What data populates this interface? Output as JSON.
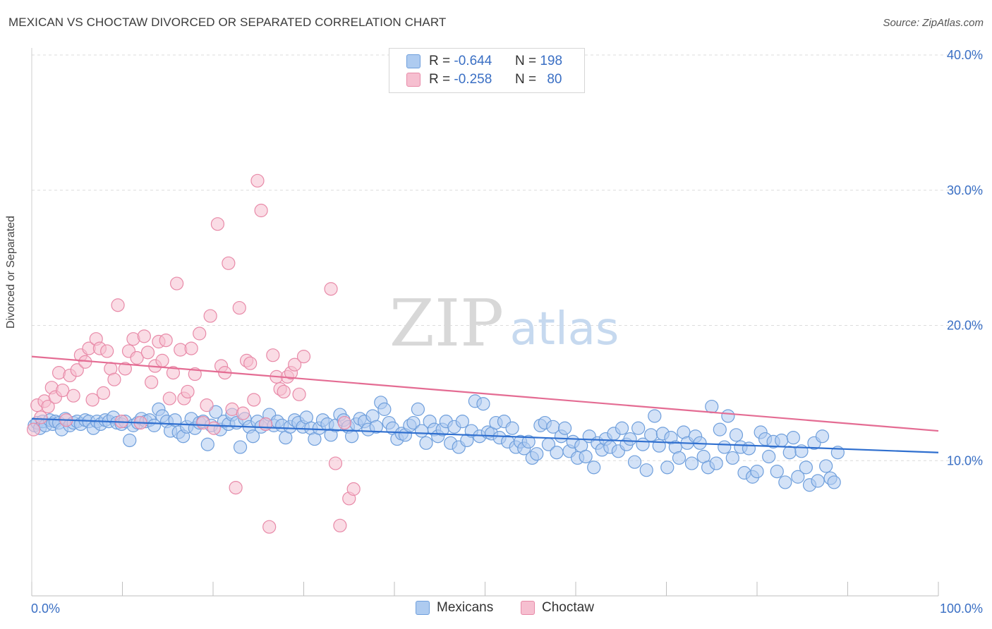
{
  "title": "MEXICAN VS CHOCTAW DIVORCED OR SEPARATED CORRELATION CHART",
  "source": "Source: ZipAtlas.com",
  "watermark": {
    "zip": "ZIP",
    "atlas": "atlas"
  },
  "legend_top": [
    {
      "r_label": "R =",
      "r_value": "-0.644",
      "n_label": "N =",
      "n_value": "198"
    },
    {
      "r_label": "R =",
      "r_value": "-0.258",
      "n_label": "N =",
      "n_value": "80"
    }
  ],
  "bottom_legend": [
    {
      "label": "Mexicans"
    },
    {
      "label": "Choctaw"
    }
  ],
  "colors": {
    "blue_fill": "#aecbf0",
    "blue_stroke": "#6f9fdc",
    "blue_line": "#2f6fcf",
    "pink_fill": "#f6bfd0",
    "pink_stroke": "#e88aa8",
    "pink_line": "#e46c93",
    "axis_label": "#3a6fc4",
    "grid": "#dcdcdc"
  },
  "chart_data": {
    "type": "scatter",
    "title": "MEXICAN VS CHOCTAW DIVORCED OR SEPARATED CORRELATION CHART",
    "xlabel": "",
    "ylabel": "Divorced or Separated",
    "xlim": [
      0,
      100
    ],
    "ylim": [
      0,
      40
    ],
    "x_tick_labels": [
      "0.0%",
      "100.0%"
    ],
    "y_ticks": [
      10,
      20,
      30,
      40
    ],
    "y_tick_labels": [
      "10.0%",
      "20.0%",
      "30.0%",
      "40.0%"
    ],
    "grid": true,
    "legend_position": "top-center",
    "series": [
      {
        "name": "Mexicans",
        "trend": {
          "x": [
            0,
            100
          ],
          "y": [
            13.1,
            10.6
          ]
        },
        "points": [
          [
            0.3,
            12.6
          ],
          [
            0.6,
            12.8
          ],
          [
            0.9,
            12.4
          ],
          [
            1.2,
            12.9
          ],
          [
            1.5,
            12.6
          ],
          [
            2.0,
            13.0
          ],
          [
            2.3,
            12.7
          ],
          [
            2.6,
            12.9
          ],
          [
            3.0,
            12.8
          ],
          [
            3.3,
            12.3
          ],
          [
            3.7,
            13.1
          ],
          [
            4.2,
            12.6
          ],
          [
            4.6,
            12.8
          ],
          [
            5.0,
            12.9
          ],
          [
            5.4,
            12.7
          ],
          [
            5.9,
            13.0
          ],
          [
            6.3,
            12.9
          ],
          [
            6.8,
            12.4
          ],
          [
            7.2,
            12.9
          ],
          [
            7.6,
            12.7
          ],
          [
            8.1,
            13.0
          ],
          [
            8.5,
            12.9
          ],
          [
            9.0,
            13.2
          ],
          [
            9.4,
            12.8
          ],
          [
            9.9,
            12.7
          ],
          [
            10.3,
            12.9
          ],
          [
            10.8,
            11.5
          ],
          [
            11.2,
            12.6
          ],
          [
            11.7,
            12.8
          ],
          [
            12.1,
            13.1
          ],
          [
            12.6,
            12.9
          ],
          [
            13.0,
            13.0
          ],
          [
            13.5,
            12.6
          ],
          [
            14.0,
            13.8
          ],
          [
            14.4,
            13.3
          ],
          [
            14.9,
            12.9
          ],
          [
            15.3,
            12.2
          ],
          [
            15.8,
            13.0
          ],
          [
            16.2,
            12.1
          ],
          [
            16.7,
            11.8
          ],
          [
            17.1,
            12.5
          ],
          [
            17.6,
            13.1
          ],
          [
            18.0,
            12.4
          ],
          [
            18.5,
            12.8
          ],
          [
            18.9,
            12.9
          ],
          [
            19.4,
            11.2
          ],
          [
            19.8,
            12.6
          ],
          [
            20.3,
            13.6
          ],
          [
            20.8,
            12.3
          ],
          [
            21.2,
            12.9
          ],
          [
            21.7,
            12.7
          ],
          [
            22.1,
            13.4
          ],
          [
            22.6,
            12.8
          ],
          [
            23.0,
            11.0
          ],
          [
            23.5,
            13.1
          ],
          [
            24.0,
            12.5
          ],
          [
            24.4,
            11.8
          ],
          [
            24.9,
            12.9
          ],
          [
            25.3,
            12.5
          ],
          [
            25.8,
            12.7
          ],
          [
            26.2,
            13.4
          ],
          [
            26.7,
            12.6
          ],
          [
            27.1,
            12.9
          ],
          [
            27.6,
            12.6
          ],
          [
            28.0,
            11.7
          ],
          [
            28.5,
            12.5
          ],
          [
            29.0,
            13.0
          ],
          [
            29.4,
            12.8
          ],
          [
            29.9,
            12.5
          ],
          [
            30.3,
            13.2
          ],
          [
            30.8,
            12.4
          ],
          [
            31.2,
            11.6
          ],
          [
            31.7,
            12.4
          ],
          [
            32.1,
            13.0
          ],
          [
            32.6,
            12.7
          ],
          [
            33.0,
            11.9
          ],
          [
            33.5,
            12.6
          ],
          [
            34.0,
            13.4
          ],
          [
            34.4,
            13.0
          ],
          [
            34.9,
            12.5
          ],
          [
            35.3,
            11.8
          ],
          [
            35.8,
            12.7
          ],
          [
            36.2,
            13.1
          ],
          [
            36.7,
            12.9
          ],
          [
            37.1,
            12.3
          ],
          [
            37.6,
            13.3
          ],
          [
            38.0,
            12.5
          ],
          [
            38.5,
            14.3
          ],
          [
            38.9,
            13.8
          ],
          [
            39.4,
            12.8
          ],
          [
            39.8,
            12.4
          ],
          [
            40.3,
            11.6
          ],
          [
            40.8,
            12.0
          ],
          [
            41.2,
            11.9
          ],
          [
            41.7,
            12.6
          ],
          [
            42.1,
            12.8
          ],
          [
            42.6,
            13.8
          ],
          [
            43.0,
            12.2
          ],
          [
            43.5,
            11.3
          ],
          [
            43.9,
            12.9
          ],
          [
            44.4,
            12.3
          ],
          [
            44.8,
            11.8
          ],
          [
            45.3,
            12.3
          ],
          [
            45.7,
            12.9
          ],
          [
            46.2,
            11.3
          ],
          [
            46.6,
            12.5
          ],
          [
            47.1,
            11.0
          ],
          [
            47.5,
            12.9
          ],
          [
            48.0,
            11.5
          ],
          [
            48.5,
            12.2
          ],
          [
            48.9,
            14.4
          ],
          [
            49.4,
            11.8
          ],
          [
            49.8,
            14.2
          ],
          [
            50.3,
            12.1
          ],
          [
            50.7,
            12.0
          ],
          [
            51.2,
            12.8
          ],
          [
            51.6,
            11.7
          ],
          [
            52.1,
            12.9
          ],
          [
            52.5,
            11.4
          ],
          [
            53.0,
            12.4
          ],
          [
            53.4,
            11.0
          ],
          [
            53.9,
            11.4
          ],
          [
            54.3,
            10.9
          ],
          [
            54.8,
            11.4
          ],
          [
            55.2,
            10.2
          ],
          [
            55.7,
            10.5
          ],
          [
            56.1,
            12.6
          ],
          [
            56.6,
            12.8
          ],
          [
            57.0,
            11.2
          ],
          [
            57.5,
            12.5
          ],
          [
            57.9,
            10.6
          ],
          [
            58.4,
            11.8
          ],
          [
            58.8,
            12.4
          ],
          [
            59.3,
            10.7
          ],
          [
            59.7,
            11.4
          ],
          [
            60.2,
            10.2
          ],
          [
            60.6,
            11.1
          ],
          [
            61.1,
            10.3
          ],
          [
            61.5,
            11.8
          ],
          [
            62.0,
            9.5
          ],
          [
            62.4,
            11.3
          ],
          [
            62.9,
            10.8
          ],
          [
            63.3,
            11.6
          ],
          [
            63.8,
            11.0
          ],
          [
            64.2,
            12.0
          ],
          [
            64.7,
            10.7
          ],
          [
            65.1,
            12.4
          ],
          [
            65.6,
            11.2
          ],
          [
            66.0,
            11.6
          ],
          [
            66.5,
            9.9
          ],
          [
            66.9,
            12.4
          ],
          [
            67.4,
            11.2
          ],
          [
            67.8,
            9.3
          ],
          [
            68.3,
            11.9
          ],
          [
            68.7,
            13.3
          ],
          [
            69.2,
            11.1
          ],
          [
            69.6,
            12.0
          ],
          [
            70.1,
            9.5
          ],
          [
            70.5,
            11.7
          ],
          [
            71.0,
            11.0
          ],
          [
            71.4,
            10.2
          ],
          [
            71.9,
            12.1
          ],
          [
            72.3,
            11.3
          ],
          [
            72.8,
            9.8
          ],
          [
            73.2,
            11.8
          ],
          [
            73.7,
            11.3
          ],
          [
            74.1,
            10.3
          ],
          [
            74.6,
            9.5
          ],
          [
            75.0,
            14.0
          ],
          [
            75.5,
            9.8
          ],
          [
            75.9,
            12.3
          ],
          [
            76.4,
            11.0
          ],
          [
            76.8,
            13.3
          ],
          [
            77.3,
            10.2
          ],
          [
            77.7,
            11.9
          ],
          [
            78.2,
            11.0
          ],
          [
            78.6,
            9.1
          ],
          [
            79.1,
            10.9
          ],
          [
            79.5,
            8.8
          ],
          [
            80.0,
            9.2
          ],
          [
            80.4,
            12.1
          ],
          [
            80.9,
            11.6
          ],
          [
            81.3,
            10.3
          ],
          [
            81.8,
            11.4
          ],
          [
            82.2,
            9.2
          ],
          [
            82.7,
            11.5
          ],
          [
            83.1,
            8.4
          ],
          [
            83.6,
            10.6
          ],
          [
            84.0,
            11.7
          ],
          [
            84.5,
            8.8
          ],
          [
            84.9,
            10.7
          ],
          [
            85.4,
            9.5
          ],
          [
            85.8,
            8.2
          ],
          [
            86.3,
            11.3
          ],
          [
            86.7,
            8.5
          ],
          [
            87.2,
            11.8
          ],
          [
            87.6,
            9.6
          ],
          [
            88.1,
            8.7
          ],
          [
            88.5,
            8.4
          ],
          [
            88.9,
            10.6
          ]
        ]
      },
      {
        "name": "Choctaw",
        "trend": {
          "x": [
            0,
            100
          ],
          "y": [
            17.7,
            12.2
          ]
        },
        "points": [
          [
            0.2,
            12.3
          ],
          [
            0.6,
            14.1
          ],
          [
            1.0,
            13.2
          ],
          [
            1.4,
            14.4
          ],
          [
            1.8,
            14.0
          ],
          [
            2.2,
            15.4
          ],
          [
            2.6,
            14.7
          ],
          [
            3.0,
            16.5
          ],
          [
            3.4,
            15.2
          ],
          [
            3.8,
            13.0
          ],
          [
            4.2,
            16.3
          ],
          [
            4.6,
            14.8
          ],
          [
            5.0,
            16.7
          ],
          [
            5.4,
            17.8
          ],
          [
            5.9,
            17.3
          ],
          [
            6.3,
            18.3
          ],
          [
            6.7,
            14.5
          ],
          [
            7.1,
            19.0
          ],
          [
            7.5,
            18.3
          ],
          [
            7.9,
            15.0
          ],
          [
            8.3,
            18.1
          ],
          [
            8.7,
            16.8
          ],
          [
            9.1,
            16.0
          ],
          [
            9.5,
            21.5
          ],
          [
            9.9,
            12.9
          ],
          [
            10.3,
            16.8
          ],
          [
            10.7,
            18.1
          ],
          [
            11.2,
            19.0
          ],
          [
            11.6,
            17.6
          ],
          [
            12.0,
            12.8
          ],
          [
            12.4,
            19.2
          ],
          [
            12.8,
            18.0
          ],
          [
            13.2,
            15.8
          ],
          [
            13.6,
            17.0
          ],
          [
            14.0,
            18.8
          ],
          [
            14.4,
            17.4
          ],
          [
            14.8,
            18.9
          ],
          [
            15.2,
            14.6
          ],
          [
            15.6,
            16.5
          ],
          [
            16.0,
            23.1
          ],
          [
            16.4,
            18.2
          ],
          [
            16.8,
            14.6
          ],
          [
            17.2,
            15.1
          ],
          [
            17.6,
            18.3
          ],
          [
            18.0,
            16.4
          ],
          [
            18.5,
            19.4
          ],
          [
            18.9,
            12.8
          ],
          [
            19.3,
            14.1
          ],
          [
            19.7,
            20.7
          ],
          [
            20.1,
            12.4
          ],
          [
            20.5,
            27.5
          ],
          [
            20.9,
            17.0
          ],
          [
            21.3,
            16.5
          ],
          [
            21.7,
            24.6
          ],
          [
            22.1,
            13.8
          ],
          [
            22.5,
            8.0
          ],
          [
            22.9,
            21.3
          ],
          [
            23.3,
            13.5
          ],
          [
            23.7,
            17.4
          ],
          [
            24.1,
            17.2
          ],
          [
            24.5,
            14.5
          ],
          [
            24.9,
            30.7
          ],
          [
            25.3,
            28.5
          ],
          [
            25.8,
            12.7
          ],
          [
            26.2,
            5.1
          ],
          [
            26.6,
            17.8
          ],
          [
            27.0,
            16.2
          ],
          [
            27.4,
            15.3
          ],
          [
            27.8,
            15.1
          ],
          [
            28.2,
            16.2
          ],
          [
            28.6,
            16.5
          ],
          [
            29.0,
            17.1
          ],
          [
            29.5,
            14.9
          ],
          [
            30.0,
            17.7
          ],
          [
            33.0,
            22.7
          ],
          [
            33.5,
            9.8
          ],
          [
            34.0,
            5.2
          ],
          [
            34.5,
            12.8
          ],
          [
            35.0,
            7.2
          ],
          [
            35.5,
            7.9
          ]
        ]
      }
    ]
  }
}
